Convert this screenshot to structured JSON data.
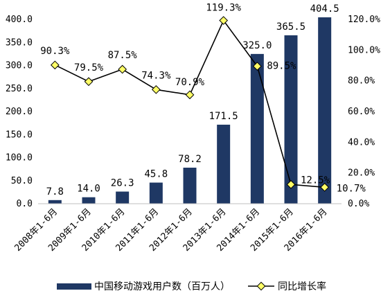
{
  "chart_data": {
    "type": "bar",
    "categories": [
      "2008年1-6月",
      "2009年1-6月",
      "2010年1-6月",
      "2011年1-6月",
      "2012年1-6月",
      "2013年1-6月",
      "2014年1-6月",
      "2015年1-6月",
      "2016年1-6月"
    ],
    "series": [
      {
        "name": "中国移动游戏用户数（百万人）",
        "type": "bar",
        "axis": "left",
        "color": "#1f3864",
        "values": [
          7.8,
          14.0,
          26.3,
          45.8,
          78.2,
          171.5,
          325.0,
          365.5,
          404.5
        ],
        "labels": [
          "7.8",
          "14.0",
          "26.3",
          "45.8",
          "78.2",
          "171.5",
          "325.0",
          "365.5",
          "404.5"
        ]
      },
      {
        "name": "同比增长率",
        "type": "line",
        "axis": "right",
        "color": "#000000",
        "marker_color": "#ffff66",
        "values": [
          90.3,
          79.5,
          87.5,
          74.3,
          70.9,
          119.3,
          89.5,
          12.5,
          10.7
        ],
        "labels": [
          "90.3%",
          "79.5%",
          "87.5%",
          "74.3%",
          "70.9%",
          "119.3%",
          "89.5%",
          "12.5%",
          "10.7%"
        ]
      }
    ],
    "y_left": {
      "ylim": [
        0,
        400
      ],
      "ticks": [
        0,
        50,
        100,
        150,
        200,
        250,
        300,
        350,
        400
      ],
      "tick_labels": [
        "0.0",
        "50.0",
        "100.0",
        "150.0",
        "200.0",
        "250.0",
        "300.0",
        "350.0",
        "400.0"
      ]
    },
    "y_right": {
      "ylim": [
        0,
        120
      ],
      "ticks": [
        0,
        20,
        40,
        60,
        80,
        100,
        120
      ],
      "tick_labels": [
        "0.0%",
        "20.0%",
        "40.0%",
        "60.0%",
        "80.0%",
        "100.0%",
        "120.0%"
      ]
    },
    "grid": false,
    "legend": "bottom"
  }
}
